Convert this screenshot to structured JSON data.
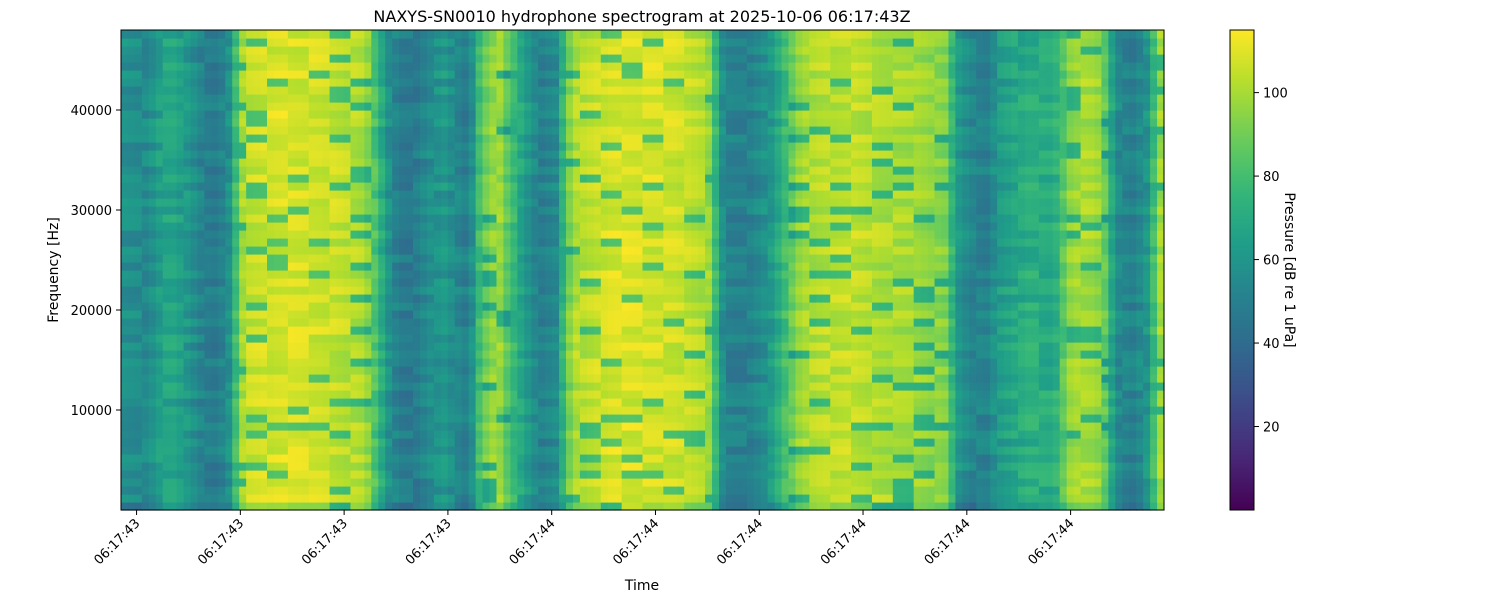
{
  "chart_data": {
    "type": "heatmap",
    "title": "NAXYS-SN0010 hydrophone spectrogram at 2025-10-06 06:17:43Z",
    "xlabel": "Time",
    "ylabel": "Frequency [Hz]",
    "colorbar_label": "Pressure [dB re 1 uPa]",
    "colormap": "viridis",
    "color_range": [
      0,
      115
    ],
    "xlim": [
      -0.075,
      4.95
    ],
    "ylim": [
      0,
      48000
    ],
    "x_ticks": [
      {
        "value": 0.0,
        "label": "06:17:43"
      },
      {
        "value": 0.5,
        "label": "06:17:43"
      },
      {
        "value": 1.0,
        "label": "06:17:43"
      },
      {
        "value": 1.5,
        "label": "06:17:43"
      },
      {
        "value": 2.0,
        "label": "06:17:44"
      },
      {
        "value": 2.5,
        "label": "06:17:44"
      },
      {
        "value": 3.0,
        "label": "06:17:44"
      },
      {
        "value": 3.5,
        "label": "06:17:44"
      },
      {
        "value": 4.0,
        "label": "06:17:44"
      },
      {
        "value": 4.5,
        "label": "06:17:44"
      }
    ],
    "y_ticks": [
      {
        "value": 10000,
        "label": "10000"
      },
      {
        "value": 20000,
        "label": "20000"
      },
      {
        "value": 30000,
        "label": "30000"
      },
      {
        "value": 40000,
        "label": "40000"
      }
    ],
    "colorbar_ticks": [
      {
        "value": 20,
        "label": "20"
      },
      {
        "value": 40,
        "label": "40"
      },
      {
        "value": 60,
        "label": "60"
      },
      {
        "value": 80,
        "label": "80"
      },
      {
        "value": 100,
        "label": "100"
      }
    ],
    "time_profile": {
      "x": [
        -0.075,
        0.05,
        0.12,
        0.17,
        0.25,
        0.32,
        0.38,
        0.44,
        0.52,
        0.7,
        0.9,
        1.1,
        1.22,
        1.27,
        1.34,
        1.4,
        1.48,
        1.56,
        1.6,
        1.66,
        1.74,
        1.8,
        1.9,
        1.95,
        2.02,
        2.1,
        2.3,
        2.6,
        2.75,
        2.82,
        2.86,
        2.95,
        3.05,
        3.12,
        3.2,
        3.3,
        3.45,
        3.6,
        3.75,
        3.9,
        3.95,
        4.02,
        4.1,
        4.15,
        4.3,
        4.42,
        4.5,
        4.58,
        4.65,
        4.72,
        4.8,
        4.87,
        4.95
      ],
      "level": [
        58,
        55,
        66,
        68,
        60,
        50,
        48,
        55,
        104,
        108,
        106,
        100,
        56,
        48,
        47,
        55,
        62,
        52,
        48,
        85,
        100,
        80,
        58,
        50,
        55,
        100,
        108,
        106,
        100,
        58,
        50,
        50,
        60,
        78,
        98,
        102,
        104,
        100,
        98,
        92,
        62,
        52,
        50,
        62,
        72,
        70,
        96,
        100,
        95,
        55,
        50,
        60,
        108
      ]
    }
  }
}
